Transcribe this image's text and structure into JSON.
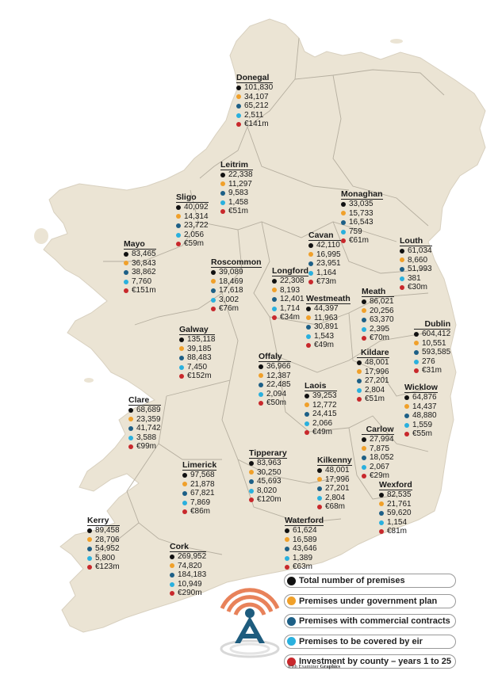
{
  "colors": {
    "land": "#ebe4d4",
    "border": "#b5ae9f",
    "total": "#111111",
    "government": "#f0a02a",
    "commercial": "#1d5f86",
    "eir": "#2ab0de",
    "investment": "#c8282c",
    "signal": "#e8825a",
    "tower": "#1e5c7e"
  },
  "counties": [
    {
      "name": "Donegal",
      "values": [
        "101,830",
        "34,107",
        "65,212",
        "2,511",
        "€141m"
      ]
    },
    {
      "name": "Leitrim",
      "values": [
        "22,338",
        "11,297",
        "9,583",
        "1,458",
        "€51m"
      ]
    },
    {
      "name": "Sligo",
      "values": [
        "40,092",
        "14,314",
        "23,722",
        "2,056",
        "€59m"
      ]
    },
    {
      "name": "Monaghan",
      "values": [
        "33,035",
        "15,733",
        "16,543",
        "759",
        "€61m"
      ]
    },
    {
      "name": "Mayo",
      "values": [
        "83,465",
        "36,843",
        "38,862",
        "7,760",
        "€151m"
      ]
    },
    {
      "name": "Cavan",
      "values": [
        "42,110",
        "16,995",
        "23,951",
        "1,164",
        "€73m"
      ]
    },
    {
      "name": "Louth",
      "values": [
        "61,034",
        "8,660",
        "51,993",
        "381",
        "€30m"
      ]
    },
    {
      "name": "Roscommon",
      "values": [
        "39,089",
        "18,469",
        "17,618",
        "3,002",
        "€76m"
      ]
    },
    {
      "name": "Longford",
      "values": [
        "22,308",
        "8,193",
        "12,401",
        "1,714",
        "€34m"
      ]
    },
    {
      "name": "Meath",
      "values": [
        "86,021",
        "20,256",
        "63,370",
        "2,395",
        "€70m"
      ]
    },
    {
      "name": "Westmeath",
      "values": [
        "44,397",
        "11,963",
        "30,891",
        "1,543",
        "€49m"
      ]
    },
    {
      "name": "Dublin",
      "values": [
        "604,412",
        "10,551",
        "593,585",
        "276",
        "€31m"
      ]
    },
    {
      "name": "Galway",
      "values": [
        "135,118",
        "39,185",
        "88,483",
        "7,450",
        "€152m"
      ]
    },
    {
      "name": "Kildare",
      "values": [
        "48,001",
        "17,996",
        "27,201",
        "2,804",
        "€51m"
      ]
    },
    {
      "name": "Offaly",
      "values": [
        "36,966",
        "12,387",
        "22,485",
        "2,094",
        "€50m"
      ]
    },
    {
      "name": "Wicklow",
      "values": [
        "64,876",
        "14,437",
        "48,880",
        "1,559",
        "€55m"
      ]
    },
    {
      "name": "Clare",
      "values": [
        "68,689",
        "23,359",
        "41,742",
        "3,588",
        "€99m"
      ]
    },
    {
      "name": "Laois",
      "values": [
        "39,253",
        "12,772",
        "24,415",
        "2,066",
        "€49m"
      ]
    },
    {
      "name": "Carlow",
      "values": [
        "27,994",
        "7,875",
        "18,052",
        "2,067",
        "€29m"
      ]
    },
    {
      "name": "Tipperary",
      "values": [
        "83,963",
        "30,250",
        "45,693",
        "8,020",
        "€120m"
      ]
    },
    {
      "name": "Limerick",
      "values": [
        "97,568",
        "21,878",
        "67,821",
        "7,869",
        "€86m"
      ]
    },
    {
      "name": "Kilkenny",
      "values": [
        "48,001",
        "17,996",
        "27,201",
        "2,804",
        "€68m"
      ]
    },
    {
      "name": "Wexford",
      "values": [
        "82,535",
        "21,761",
        "59,620",
        "1,154",
        "€81m"
      ]
    },
    {
      "name": "Kerry",
      "values": [
        "89,458",
        "28,706",
        "54,952",
        "5,800",
        "€123m"
      ]
    },
    {
      "name": "Waterford",
      "values": [
        "61,624",
        "16,589",
        "43,646",
        "1,389",
        "€63m"
      ]
    },
    {
      "name": "Cork",
      "values": [
        "269,952",
        "74,820",
        "184,183",
        "10,949",
        "€290m"
      ]
    }
  ],
  "legend": [
    "Total number of premises",
    "Premises under government plan",
    "Premises with commercial contracts",
    "Premises to be covered by eir",
    "Investment by county – years 1 to 25"
  ],
  "credit": {
    "text": "Irish Examiner",
    "bold": "Graphics"
  },
  "icons": {
    "broadcast": "broadcast-tower-icon"
  }
}
